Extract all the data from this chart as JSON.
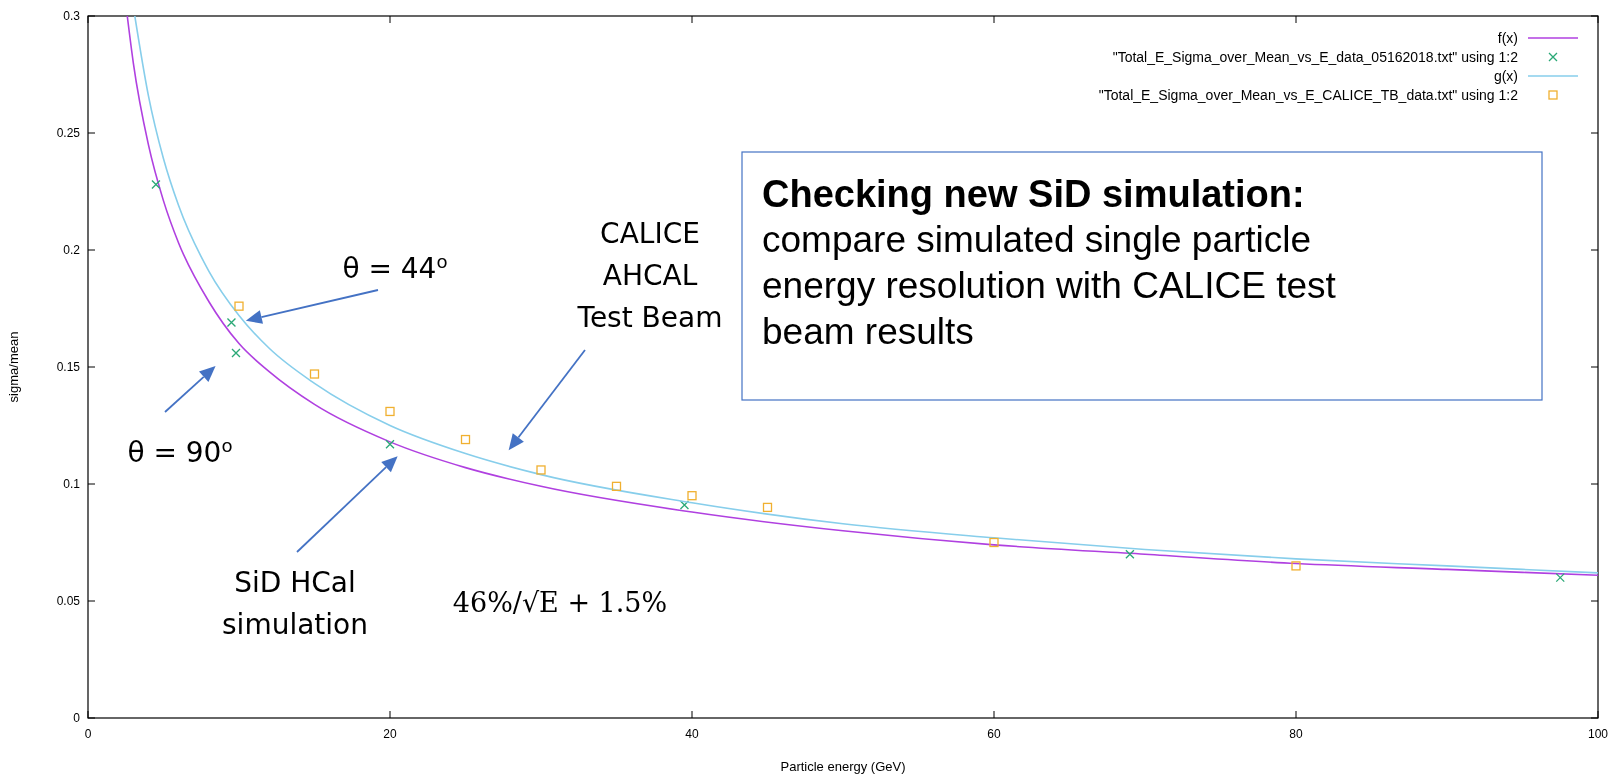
{
  "chart_data": {
    "type": "line",
    "title": "Checking new SiD simulation:",
    "subtitle": "compare simulated single particle energy resolution with CALICE test beam results",
    "xlabel": "Particle energy (GeV)",
    "ylabel": "sigma/mean",
    "xlim": [
      0,
      100
    ],
    "xticks": [
      0,
      20,
      40,
      60,
      80,
      100
    ],
    "ylim": [
      0,
      0.3
    ],
    "yticks": [
      0,
      0.05,
      0.1,
      0.15,
      0.2,
      0.25,
      0.3
    ],
    "legend": "top right",
    "grid": false,
    "series": [
      {
        "name": "f(x)",
        "color": "#b040e0",
        "line_style": "solid",
        "x": [
          2.6,
          3,
          4,
          5,
          6,
          8,
          10,
          12,
          15,
          20,
          25,
          30,
          40,
          50,
          60,
          70,
          80,
          90,
          100
        ],
        "values": [
          0.3,
          0.28,
          0.245,
          0.221,
          0.203,
          0.178,
          0.16,
          0.148,
          0.134,
          0.118,
          0.107,
          0.099,
          0.088,
          0.08,
          0.074,
          0.07,
          0.066,
          0.0635,
          0.061
        ]
      },
      {
        "name": "\"Total_E_Sigma_over_Mean_vs_E_data_05162018.txt\" using 1:2",
        "type": "scatter",
        "marker": "cross",
        "color": "#2aa876",
        "x": [
          4.5,
          9.5,
          9.8,
          20,
          39.5,
          69,
          97.5
        ],
        "values": [
          0.228,
          0.169,
          0.156,
          0.117,
          0.091,
          0.07,
          0.06
        ]
      },
      {
        "name": "g(x)",
        "color": "#87ceeb",
        "line_style": "solid",
        "x": [
          3.1,
          4,
          5,
          6,
          8,
          10,
          12,
          15,
          20,
          25,
          30,
          40,
          50,
          60,
          70,
          80,
          90,
          100
        ],
        "values": [
          0.3,
          0.266,
          0.239,
          0.219,
          0.191,
          0.172,
          0.158,
          0.143,
          0.125,
          0.113,
          0.104,
          0.092,
          0.083,
          0.077,
          0.072,
          0.068,
          0.065,
          0.062
        ]
      },
      {
        "name": "\"Total_E_Sigma_over_Mean_vs_E_CALICE_TB_data.txt\" using 1:2",
        "type": "scatter",
        "marker": "square",
        "color": "#f0b030",
        "x": [
          10,
          15,
          20,
          25,
          30,
          35,
          40,
          45,
          60,
          80
        ],
        "values": [
          0.176,
          0.147,
          0.131,
          0.119,
          0.106,
          0.099,
          0.095,
          0.09,
          0.075,
          0.065
        ]
      }
    ],
    "annotations": [
      "θ = 44$^{o}$",
      "θ = 90$^{o}$",
      "CALICE\nAHCAL\nTest Beam",
      "SiD HCal\nsimulation",
      "46%/√E + 1.5%"
    ]
  }
}
